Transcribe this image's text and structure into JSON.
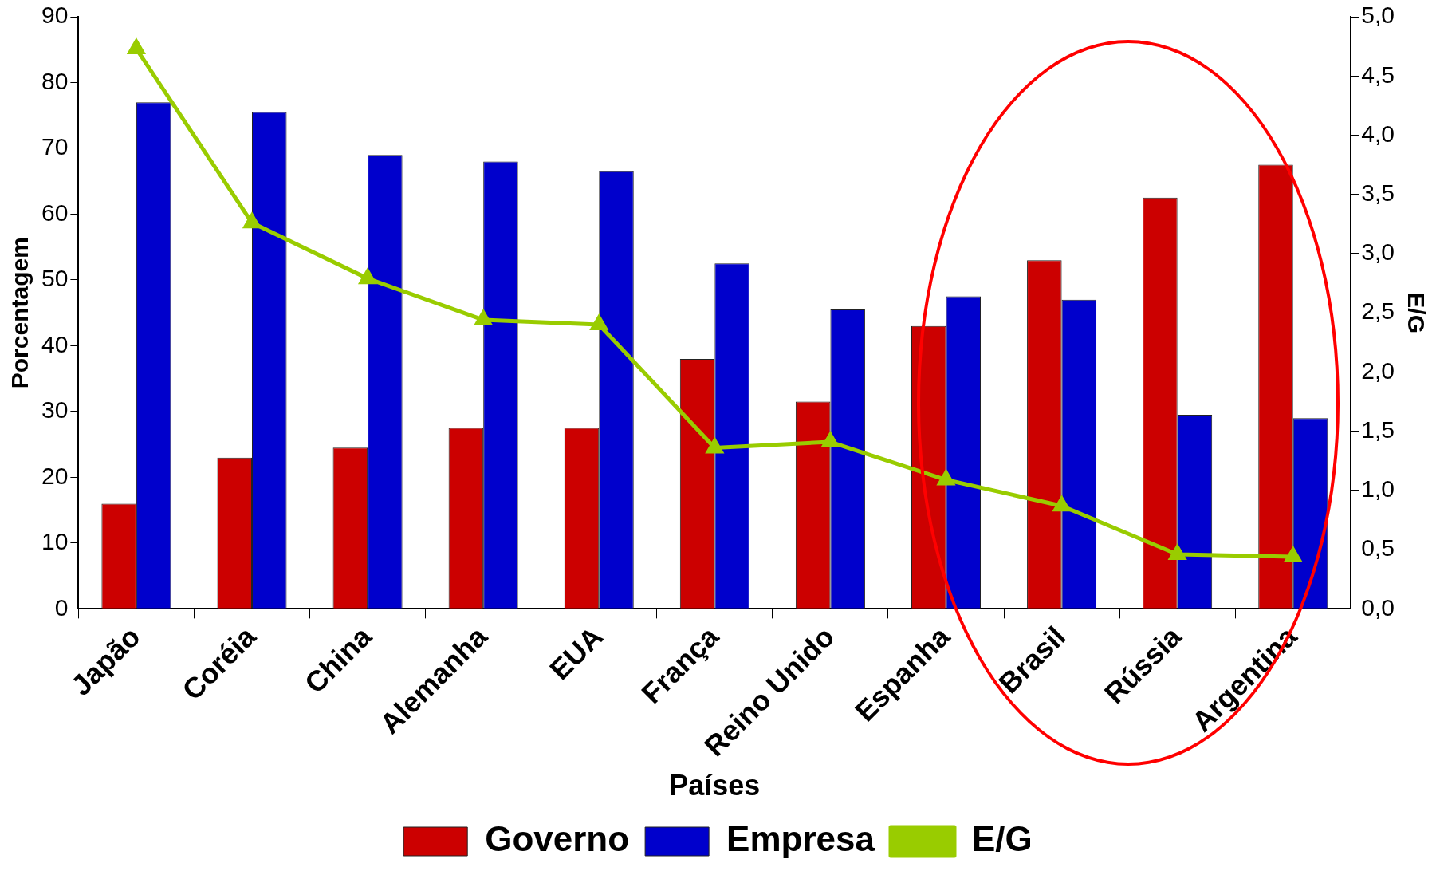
{
  "chart_data": {
    "type": "bar",
    "xlabel": "Países",
    "ylabel": "Porcentagem",
    "y2label": "E/G",
    "categories": [
      "Japão",
      "Coréia",
      "China",
      "Alemanha",
      "EUA",
      "França",
      "Reino Unido",
      "Espanha",
      "Brasil",
      "Rússia",
      "Argentina"
    ],
    "series": [
      {
        "name": "Governo",
        "color": "#cc0000",
        "values": [
          16,
          23,
          24.5,
          27.5,
          27.5,
          38,
          31.5,
          43,
          53,
          62.5,
          67.5
        ]
      },
      {
        "name": "Empresa",
        "color": "#0000cc",
        "values": [
          77,
          75.5,
          69,
          68,
          66.5,
          52.5,
          45.5,
          47.5,
          47,
          29.5,
          29
        ]
      },
      {
        "name": "E/G",
        "type": "line",
        "axis": "y2",
        "color": "#99cc00",
        "marker": "triangle",
        "values": [
          4.73,
          3.26,
          2.79,
          2.44,
          2.4,
          1.36,
          1.41,
          1.09,
          0.87,
          0.46,
          0.44
        ]
      }
    ],
    "ylim": [
      0,
      90
    ],
    "yticks": [
      0,
      10,
      20,
      30,
      40,
      50,
      60,
      70,
      80,
      90
    ],
    "y2lim": [
      0,
      5
    ],
    "y2ticks": [
      {
        "value": 0,
        "label": "0,0"
      },
      {
        "value": 0.5,
        "label": "0,5"
      },
      {
        "value": 1,
        "label": "1,0"
      },
      {
        "value": 1.5,
        "label": "1,5"
      },
      {
        "value": 2,
        "label": "2,0"
      },
      {
        "value": 2.5,
        "label": "2,5"
      },
      {
        "value": 3,
        "label": "3,0"
      },
      {
        "value": 3.5,
        "label": "3,5"
      },
      {
        "value": 4,
        "label": "4,0"
      },
      {
        "value": 4.5,
        "label": "4,5"
      },
      {
        "value": 5,
        "label": "5,0"
      }
    ],
    "grid": false,
    "legend": "bottom"
  }
}
